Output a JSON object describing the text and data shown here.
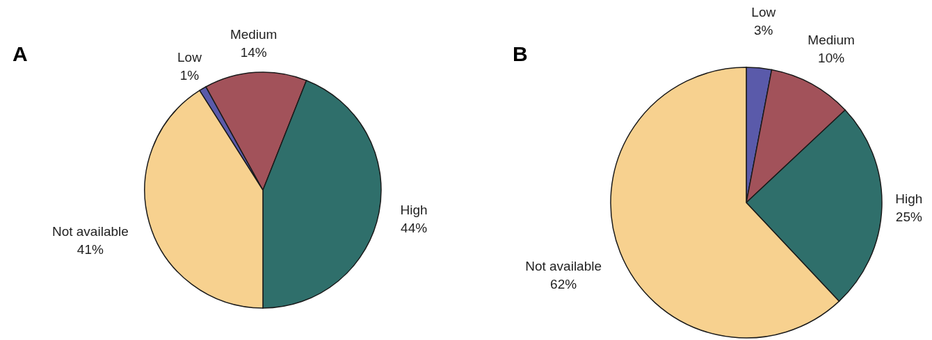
{
  "chart_data": [
    {
      "type": "pie",
      "title": "A",
      "categories": [
        "Low",
        "Medium",
        "High",
        "Not available"
      ],
      "values": [
        1,
        14,
        44,
        41
      ],
      "colors": [
        "#5a5aaa",
        "#a2525a",
        "#2f6f6b",
        "#f7d18f"
      ],
      "value_labels": [
        "1%",
        "14%",
        "44%",
        "41%"
      ]
    },
    {
      "type": "pie",
      "title": "B",
      "categories": [
        "Low",
        "Medium",
        "High",
        "Not available"
      ],
      "values": [
        3,
        10,
        25,
        62
      ],
      "colors": [
        "#5a5aaa",
        "#a2525a",
        "#2f6f6b",
        "#f7d18f"
      ],
      "value_labels": [
        "3%",
        "10%",
        "25%",
        "62%"
      ]
    }
  ]
}
